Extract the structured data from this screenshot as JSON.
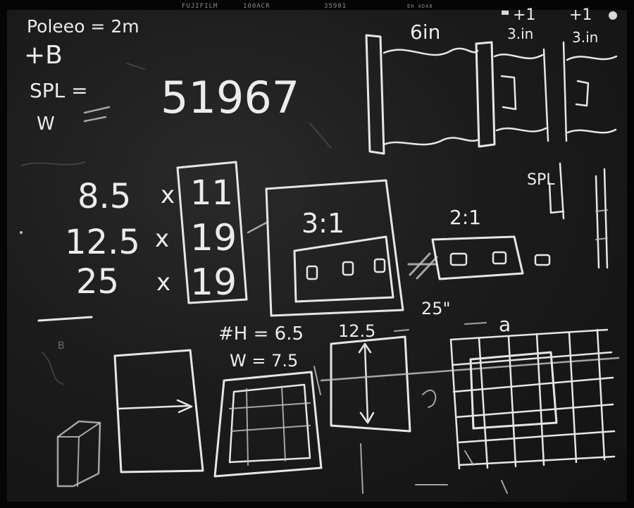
{
  "film_edge": {
    "brand": "FUJIFILM",
    "stock": "100ACR",
    "frame_code": "35901",
    "edge_mark": "EH ADA8"
  },
  "chalk_text": {
    "top_left_line1": "Poleeo = 2m",
    "top_left_line2": "+B",
    "spl_label": "SPL =",
    "w_label": "W",
    "big_number": "51967",
    "six_in": "6in",
    "plus_one_a": "+1",
    "three_in_a": "3.in",
    "plus_one_b": "+1",
    "three_in_b": "3.in",
    "dim_row1_a": "8.5",
    "dim_row1_x": "x",
    "dim_row1_b": "11",
    "dim_row2_a": "12.5",
    "dim_row2_x": "x",
    "dim_row2_b": "19",
    "dim_row3_a": "25",
    "dim_row3_x": "x",
    "dim_row3_b": "19",
    "ratio_a": "3:1",
    "ratio_b": "2:1",
    "height_label": "#H = 6.5",
    "width_label": "W = 7.5",
    "dim_125": "12.5",
    "dim_25": "25\"",
    "letter_a": "a",
    "spl_right": "SPL",
    "letter_b": "B"
  },
  "colors": {
    "chalk": "#e6e6e6",
    "board": "#1c1c1c",
    "film_border": "#050505"
  }
}
